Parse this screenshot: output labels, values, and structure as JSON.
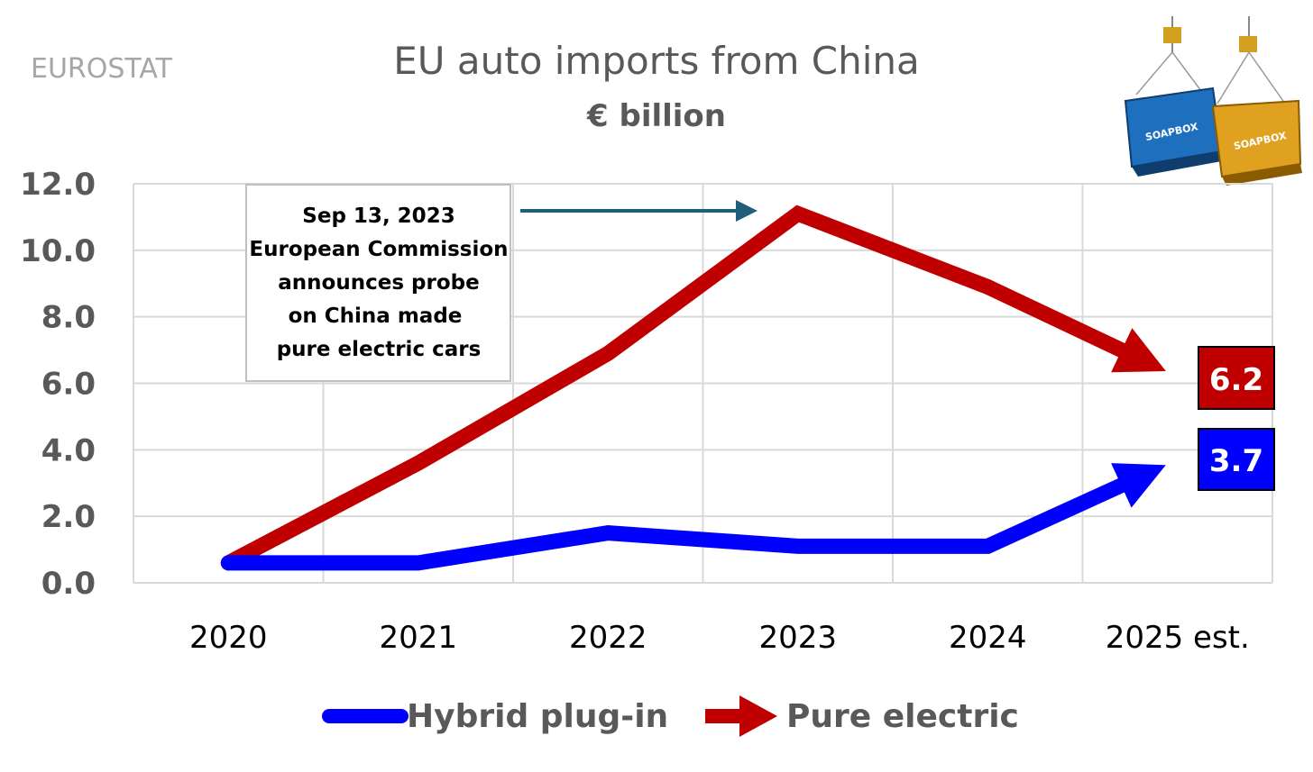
{
  "source": "EUROSTAT",
  "chart_data": {
    "type": "line",
    "title": "EU auto imports from China",
    "subtitle": "€ billion",
    "xlabel": "",
    "ylabel": "",
    "categories": [
      "2020",
      "2021",
      "2022",
      "2023",
      "2024",
      "2025 est."
    ],
    "ylim": [
      0,
      12
    ],
    "yticks": [
      "0.0",
      "2.0",
      "4.0",
      "6.0",
      "8.0",
      "10.0",
      "12.0"
    ],
    "grid": true,
    "legend_position": "bottom",
    "series": [
      {
        "name": "Hybrid plug-in",
        "color": "#0000ff",
        "values": [
          0.6,
          0.6,
          1.5,
          1.1,
          1.1,
          3.7
        ],
        "end_label": "3.7"
      },
      {
        "name": "Pure electric",
        "color": "#c00000",
        "values": [
          0.6,
          3.6,
          6.9,
          11.1,
          8.9,
          6.2
        ],
        "end_label": "6.2"
      }
    ],
    "annotation": {
      "lines": [
        "Sep 13, 2023",
        "European Commission",
        "announces probe",
        "on China made",
        "pure electric cars"
      ],
      "points_to": "2023",
      "arrow_color": "#1f5f7a"
    }
  },
  "logo": {
    "icon": "shipping-containers-icon",
    "text": "SOAPBOX",
    "colors": [
      "#1f6fbf",
      "#e0a020"
    ]
  }
}
